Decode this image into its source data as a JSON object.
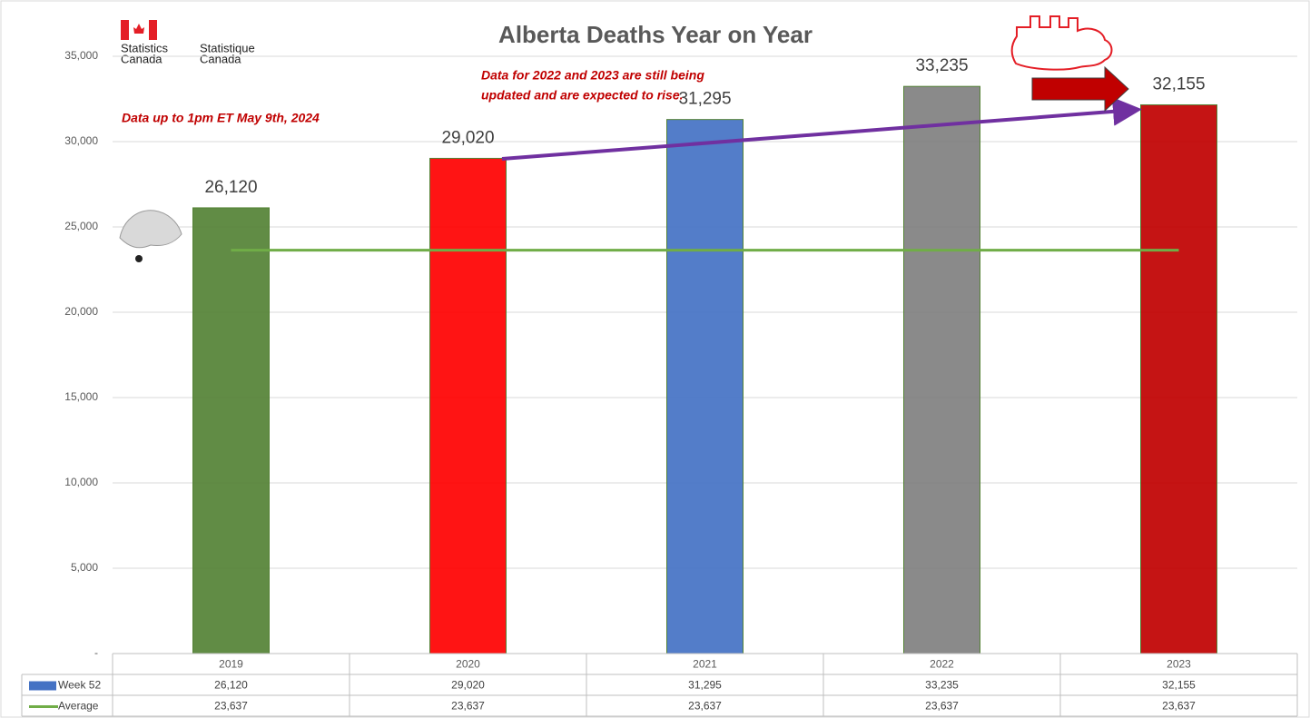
{
  "logo": {
    "english": [
      "Statistics",
      "Canada"
    ],
    "french": [
      "Statistique",
      "Canada"
    ]
  },
  "chart_data": {
    "type": "bar",
    "title": "Alberta Deaths Year on Year",
    "annotations": [
      "Data up to 1pm ET May 9th, 2024",
      "Data for 2022 and 2023 are still being",
      "updated and are expected to rise."
    ],
    "categories": [
      "2019",
      "2020",
      "2021",
      "2022",
      "2023"
    ],
    "series": [
      {
        "name": "Week 52",
        "type": "bar",
        "color": "#4472c4",
        "colors": [
          "#548235",
          "#ff0000",
          "#4472c4",
          "#808080",
          "#c00000"
        ],
        "values": [
          26120,
          29020,
          31295,
          33235,
          32155
        ],
        "value_labels": [
          "26,120",
          "29,020",
          "31,295",
          "33,235",
          "32,155"
        ]
      },
      {
        "name": "Average",
        "type": "line",
        "color": "#70ad47",
        "values": [
          23637,
          23637,
          23637,
          23637,
          23637
        ],
        "value_labels": [
          "23,637",
          "23,637",
          "23,637",
          "23,637",
          "23,637"
        ]
      }
    ],
    "ylim": [
      0,
      35000
    ],
    "yticks": [
      {
        "value": 0,
        "label": "-"
      },
      {
        "value": 5000,
        "label": "5,000"
      },
      {
        "value": 10000,
        "label": "10,000"
      },
      {
        "value": 15000,
        "label": "15,000"
      },
      {
        "value": 20000,
        "label": "20,000"
      },
      {
        "value": 25000,
        "label": "25,000"
      },
      {
        "value": 30000,
        "label": "30,000"
      },
      {
        "value": 35000,
        "label": "35,000"
      }
    ],
    "grid": true
  }
}
